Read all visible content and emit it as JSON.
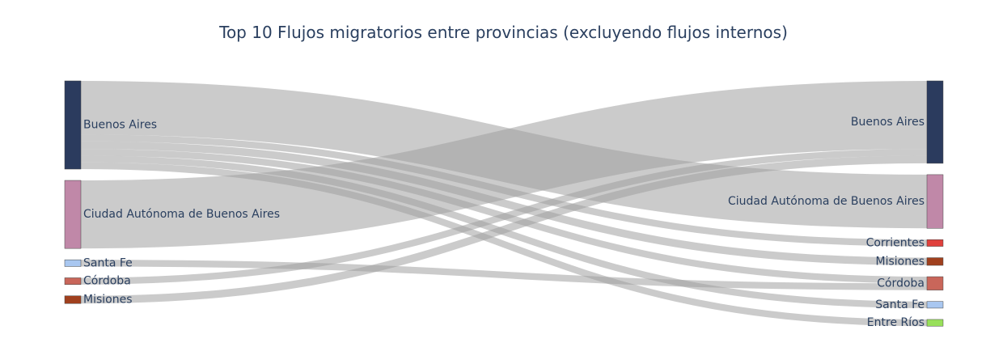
{
  "chart_data": {
    "type": "sankey",
    "title": "Top 10 Flujos migratorios entre provincias (excluyendo flujos internos)",
    "sources": [
      {
        "name": "Buenos Aires",
        "color": "#2b3b5e"
      },
      {
        "name": "Ciudad Autónoma de Buenos Aires",
        "color": "#c088a8"
      },
      {
        "name": "Santa Fe",
        "color": "#a9c7f0"
      },
      {
        "name": "Córdoba",
        "color": "#c9665a"
      },
      {
        "name": "Misiones",
        "color": "#a0401e"
      }
    ],
    "targets": [
      {
        "name": "Buenos Aires",
        "color": "#2b3b5e"
      },
      {
        "name": "Ciudad Autónoma de Buenos Aires",
        "color": "#c088a8"
      },
      {
        "name": "Corrientes",
        "color": "#e0403c"
      },
      {
        "name": "Misiones",
        "color": "#a0401e"
      },
      {
        "name": "Córdoba",
        "color": "#c9665a"
      },
      {
        "name": "Santa Fe",
        "color": "#a9c7f0"
      },
      {
        "name": "Entre Ríos",
        "color": "#98e05a"
      }
    ],
    "links": [
      {
        "source": "Buenos Aires",
        "target": "Ciudad Autónoma de Buenos Aires",
        "value": 56
      },
      {
        "source": "Buenos Aires",
        "target": "Corrientes",
        "value": 7
      },
      {
        "source": "Buenos Aires",
        "target": "Misiones",
        "value": 8
      },
      {
        "source": "Buenos Aires",
        "target": "Córdoba",
        "value": 7
      },
      {
        "source": "Buenos Aires",
        "target": "Santa Fe",
        "value": 7
      },
      {
        "source": "Buenos Aires",
        "target": "Entre Ríos",
        "value": 7
      },
      {
        "source": "Ciudad Autónoma de Buenos Aires",
        "target": "Buenos Aires",
        "value": 71
      },
      {
        "source": "Santa Fe",
        "target": "Córdoba",
        "value": 7
      },
      {
        "source": "Córdoba",
        "target": "Buenos Aires",
        "value": 7
      },
      {
        "source": "Misiones",
        "target": "Buenos Aires",
        "value": 8
      }
    ]
  }
}
